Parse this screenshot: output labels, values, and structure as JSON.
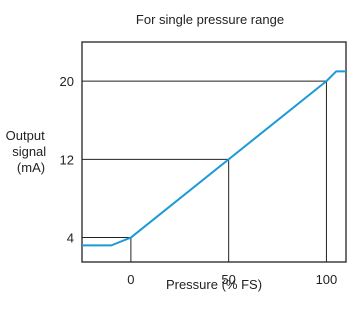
{
  "chart_data": {
    "type": "line",
    "title": "For single pressure range",
    "xlabel": "Pressure (% FS)",
    "ylabel": [
      "Output",
      "signal",
      "(mA)"
    ],
    "xlim": [
      -25,
      110
    ],
    "ylim": [
      1.5,
      24
    ],
    "x_ticks": [
      0,
      50,
      100
    ],
    "y_ticks": [
      4,
      12,
      20
    ],
    "grid": false,
    "series": [
      {
        "color": "#1a9ad6",
        "x": [
          -25,
          -10,
          0,
          100,
          105,
          110
        ],
        "y": [
          3.2,
          3.2,
          4,
          20,
          21,
          21
        ]
      }
    ],
    "reference_points": [
      {
        "x": 0,
        "y": 4
      },
      {
        "x": 50,
        "y": 12
      },
      {
        "x": 100,
        "y": 20
      }
    ]
  }
}
